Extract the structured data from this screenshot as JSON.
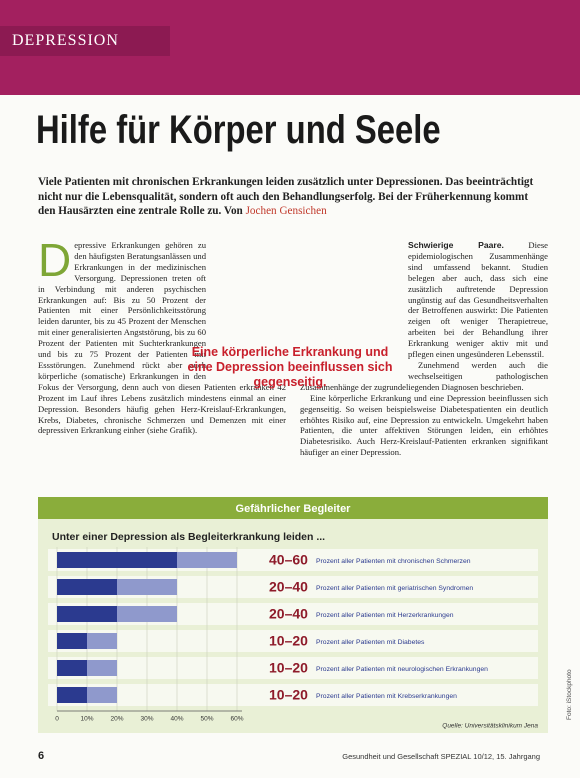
{
  "header": {
    "section": "DEPRESSION",
    "title": "Hilfe für Körper und Seele"
  },
  "lead": {
    "text": "Viele Patienten mit chronischen Erkrankungen leiden zusätzlich unter Depressionen. Das beeinträchtigt nicht nur die Lebensqualität, sondern oft auch den Behandlungserfolg. Bei der Früherkennung kommt den Hausärzten eine zentrale Rolle zu. Von",
    "author": "Jochen Gensichen"
  },
  "body": {
    "left": {
      "dropcap": "D",
      "text": "epressive Erkrankungen gehören zu den häufigsten Beratungsanlässen und Erkrankungen in der medizinischen Versorgung. Depressionen treten oft in Verbindung mit anderen psychischen Erkrankungen auf: Bis zu 50 Prozent der Patienten mit einer Persönlichkeitsstörung leiden darunter, bis zu 45 Prozent der Menschen mit einer generalisierten Angststörung, bis zu 60 Prozent der Patienten mit Suchterkrankungen und bis zu 75 Prozent der Patienten mit Essstörungen. Zunehmend rückt aber auch körperliche (somatische) Erkrankungen in den Fokus der Versorgung, denn auch von diesen Patienten erkranken 42 Prozent im Lauf ihres Lebens zusätzlich mindestens einmal an einer Depression. Besonders häufig gehen Herz-Kreislauf-Erkrankungen, Krebs, Diabetes, chronische Schmerzen und Demenzen mit einer depressiven Erkrankung einher (siehe Grafik)."
    },
    "right": {
      "heading": "Schwierige Paare.",
      "paragraphs": [
        "Diese epidemiologischen Zusammenhänge sind umfassend bekannt. Studien belegen aber auch, dass sich eine zusätzlich auftretende Depression ungünstig auf das Gesundheitsverhalten der Betroffenen auswirkt: Die Patienten zeigen oft weniger Therapietreue, arbeiten bei der Behandlung ihrer Erkrankung weniger aktiv mit und pflegen einen ungesünderen Lebensstil.",
        "Zunehmend werden auch die wechselseitigen pathologischen Zusammenhänge der zugrundeliegenden Diagnosen beschrieben.",
        "Eine körperliche Erkrankung und eine Depression beeinflussen sich gegenseitig. So weisen beispielsweise Diabetespatienten ein deutlich erhöhtes Risiko auf, eine Depression zu entwickeln. Umgekehrt haben Patienten, die unter affektiven Störungen leiden, ein erhöhtes Diabetesrisiko. Auch Herz-Kreislauf-Patienten erkranken signifikant häufiger an einer Depression."
      ]
    }
  },
  "pullquote": "Eine körperliche Erkrankung und eine Depression beeinflussen sich gegenseitig.",
  "chart": {
    "title": "Gefährlicher Begleiter",
    "subtitle": "Unter einer Depression als Begleiterkrankung leiden ...",
    "xlim": [
      0,
      60
    ],
    "xticks": [
      0,
      {
        "value": 10,
        "label": "10%"
      },
      {
        "value": 20,
        "label": "20%"
      },
      {
        "value": 30,
        "label": "30%"
      },
      {
        "value": 40,
        "label": "40%"
      },
      {
        "value": 50,
        "label": "50%"
      },
      {
        "value": 60,
        "label": "60%"
      }
    ],
    "colors": {
      "low": "#2b3a8f",
      "range": "#8f99cc"
    },
    "rows": [
      {
        "range": "40–60",
        "low": 40,
        "high": 60,
        "text": "Prozent aller Patienten mit chronischen Schmerzen"
      },
      {
        "range": "20–40",
        "low": 20,
        "high": 40,
        "text": "Prozent aller Patienten mit geriatrischen Syndromen"
      },
      {
        "range": "20–40",
        "low": 20,
        "high": 40,
        "text": "Prozent aller Patienten mit Herzerkrankungen"
      },
      {
        "range": "10–20",
        "low": 10,
        "high": 20,
        "text": "Prozent aller Patienten mit Diabetes"
      },
      {
        "range": "10–20",
        "low": 10,
        "high": 20,
        "text": "Prozent aller Patienten mit neurologischen Erkrankungen"
      },
      {
        "range": "10–20",
        "low": 10,
        "high": 20,
        "text": "Prozent aller Patienten mit Krebserkrankungen"
      }
    ],
    "source": "Quelle: Universitätsklinikum Jena"
  },
  "footer": {
    "page": "6",
    "journal": "Gesundheit und Gesellschaft SPEZIAL 10/12, 15. Jahrgang"
  },
  "photo_credit": "Foto: iStockphoto"
}
